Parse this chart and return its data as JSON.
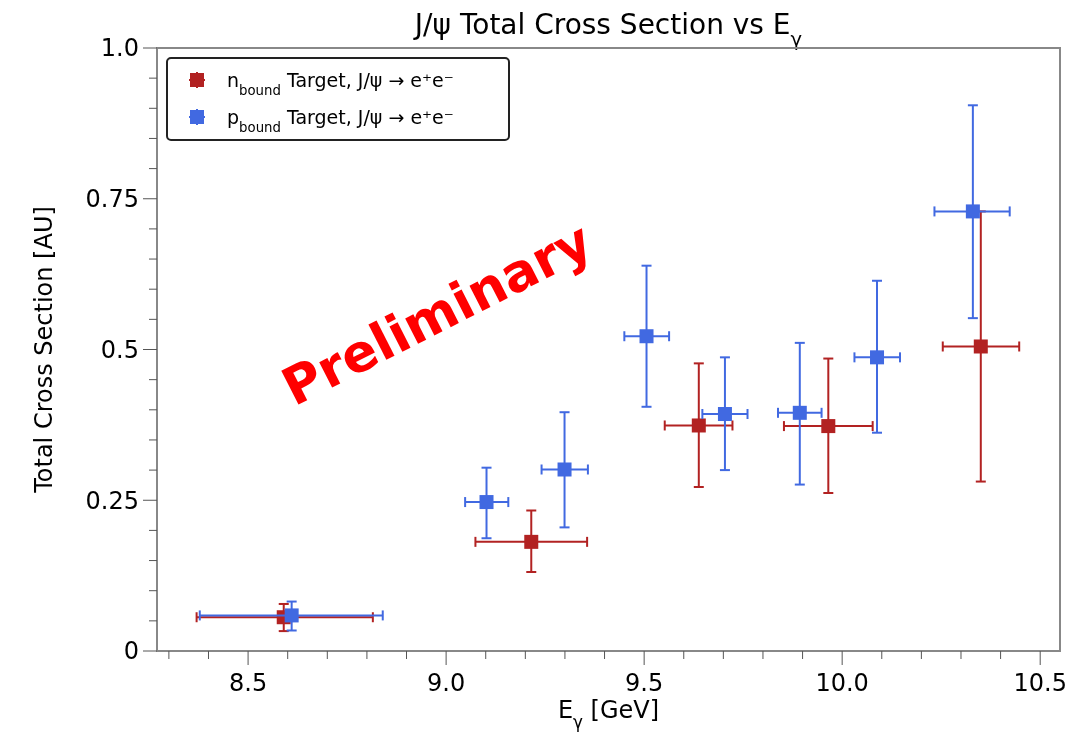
{
  "chart_data": {
    "type": "scatter",
    "title": "J/ψ Total Cross Section vs E$_{γ}$",
    "xlabel": "E$_{γ}$ [GeV]",
    "ylabel": "Total Cross Section [AU]",
    "xlim": [
      8.27,
      10.55
    ],
    "xticks": [
      {
        "value": 8.3,
        "label": null
      },
      {
        "value": 8.4,
        "label": null
      },
      8.5,
      {
        "value": 8.6,
        "label": null
      },
      {
        "value": 8.7,
        "label": null
      },
      {
        "value": 8.8,
        "label": null
      },
      {
        "value": 8.9,
        "label": null
      },
      {
        "value": 9,
        "label": "9.0"
      },
      {
        "value": 9.1,
        "label": null
      },
      {
        "value": 9.2,
        "label": null
      },
      {
        "value": 9.3,
        "label": null
      },
      {
        "value": 9.4,
        "label": null
      },
      9.5,
      {
        "value": 9.6,
        "label": null
      },
      {
        "value": 9.7,
        "label": null
      },
      {
        "value": 9.8,
        "label": null
      },
      {
        "value": 9.9,
        "label": null
      },
      {
        "value": 10,
        "label": "10.0"
      },
      {
        "value": 10.1,
        "label": null
      },
      {
        "value": 10.2,
        "label": null
      },
      {
        "value": 10.3,
        "label": null
      },
      {
        "value": 10.4,
        "label": null
      },
      10.5
    ],
    "ylim": [
      0,
      1
    ],
    "yticks": [
      0,
      {
        "value": 0.05,
        "label": null
      },
      {
        "value": 0.1,
        "label": null
      },
      {
        "value": 0.15,
        "label": null
      },
      {
        "value": 0.2,
        "label": null
      },
      0.25,
      {
        "value": 0.3,
        "label": null
      },
      {
        "value": 0.35,
        "label": null
      },
      {
        "value": 0.4,
        "label": null
      },
      {
        "value": 0.45,
        "label": null
      },
      0.5,
      {
        "value": 0.55,
        "label": null
      },
      {
        "value": 0.6,
        "label": null
      },
      {
        "value": 0.65,
        "label": null
      },
      {
        "value": 0.7,
        "label": null
      },
      0.75,
      {
        "value": 0.8,
        "label": null
      },
      {
        "value": 0.85,
        "label": null
      },
      {
        "value": 0.9,
        "label": null
      },
      {
        "value": 0.95,
        "label": null
      },
      {
        "value": 1,
        "label": "1.0"
      }
    ],
    "grid": false,
    "legend": "top left",
    "marker": "square",
    "annotations": [
      "Preliminary"
    ],
    "series": [
      {
        "name": "n$_{bound}$ Target, J/ψ → e⁺e⁻",
        "color": "#b22222",
        "x": [
          8.59,
          9.215,
          9.638,
          9.965,
          10.35
        ],
        "values": [
          0.056,
          0.181,
          0.374,
          0.373,
          0.505
        ],
        "errors": [
          [
            0.033,
            0.078
          ],
          [
            0.131,
            0.233
          ],
          [
            0.272,
            0.477
          ],
          [
            0.262,
            0.485
          ],
          [
            0.281,
            0.729
          ]
        ],
        "xerrors": [
          [
            8.37,
            8.815
          ],
          [
            9.074,
            9.356
          ],
          [
            9.552,
            9.723
          ],
          [
            9.853,
            10.077
          ],
          [
            10.254,
            10.447
          ]
        ]
      },
      {
        "name": "p$_{bound}$ Target, J/ψ → e⁺e⁻",
        "color": "#4169e1",
        "x": [
          8.61,
          9.102,
          9.299,
          9.506,
          9.704,
          9.893,
          10.088,
          10.33
        ],
        "values": [
          0.059,
          0.247,
          0.301,
          0.522,
          0.393,
          0.395,
          0.487,
          0.729
        ],
        "errors": [
          [
            0.034,
            0.082
          ],
          [
            0.187,
            0.304
          ],
          [
            0.205,
            0.396
          ],
          [
            0.405,
            0.639
          ],
          [
            0.3,
            0.487
          ],
          [
            0.276,
            0.511
          ],
          [
            0.362,
            0.614
          ],
          [
            0.552,
            0.905
          ]
        ],
        "xerrors": [
          [
            8.378,
            8.84
          ],
          [
            9.048,
            9.157
          ],
          [
            9.241,
            9.358
          ],
          [
            9.45,
            9.563
          ],
          [
            9.647,
            9.761
          ],
          [
            9.838,
            9.948
          ],
          [
            10.031,
            10.146
          ],
          [
            10.233,
            10.423
          ]
        ]
      }
    ]
  }
}
